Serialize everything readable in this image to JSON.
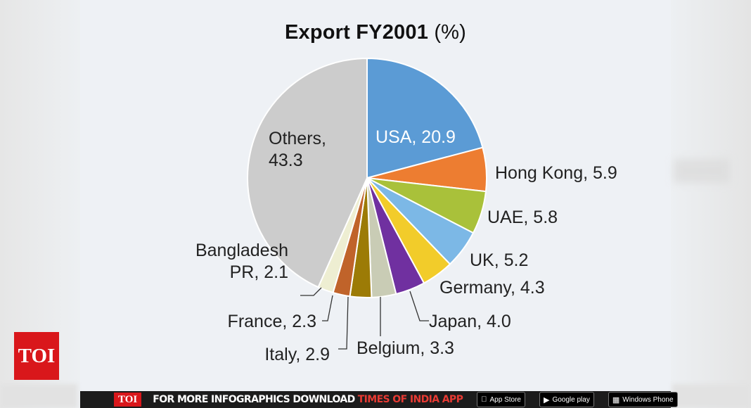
{
  "chart_data": {
    "type": "pie",
    "title_bold": "Export FY2001",
    "title_unit": "(%)",
    "slices": [
      {
        "label": "USA, 20.9",
        "name": "USA",
        "value": 20.9,
        "color": "#5b9bd5"
      },
      {
        "label": "Hong Kong, 5.9",
        "name": "Hong Kong",
        "value": 5.9,
        "color": "#ed7d31"
      },
      {
        "label": "UAE, 5.8",
        "name": "UAE",
        "value": 5.8,
        "color": "#a9c13a"
      },
      {
        "label": "UK, 5.2",
        "name": "UK",
        "value": 5.2,
        "color": "#7cb8e6"
      },
      {
        "label": "Germany, 4.3",
        "name": "Germany",
        "value": 4.3,
        "color": "#f2cc2a"
      },
      {
        "label": "Japan, 4.0",
        "name": "Japan",
        "value": 4.0,
        "color": "#7030a0"
      },
      {
        "label": "Belgium, 3.3",
        "name": "Belgium",
        "value": 3.3,
        "color": "#c9ccb5"
      },
      {
        "label": "Italy, 2.9",
        "name": "Italy",
        "value": 2.9,
        "color": "#9c7b06"
      },
      {
        "label": "France, 2.3",
        "name": "France",
        "value": 2.3,
        "color": "#c0632a"
      },
      {
        "label": "Bangladesh PR, 2.1",
        "name": "Bangladesh PR",
        "value": 2.1,
        "color": "#eeeed2"
      },
      {
        "label": "Others, 43.3",
        "name": "Others",
        "value": 43.3,
        "color": "#cccccc"
      }
    ],
    "label_lines": {
      "USA": [
        "USA, 20.9"
      ],
      "Hong Kong": [
        "Hong Kong, 5.9"
      ],
      "UAE": [
        "UAE, 5.8"
      ],
      "UK": [
        "UK, 5.2"
      ],
      "Germany": [
        "Germany, 4.3"
      ],
      "Japan": [
        "Japan, 4.0"
      ],
      "Belgium": [
        "Belgium, 3.3"
      ],
      "Italy": [
        "Italy, 2.9"
      ],
      "France": [
        "France, 2.3"
      ],
      "Bangladesh PR": [
        "Bangladesh",
        "PR, 2.1"
      ],
      "Others": [
        "Others,",
        "43.3"
      ]
    }
  },
  "branding": {
    "logo_text": "TOI",
    "footer_logo": "TOI",
    "footer_text": "FOR MORE  INFOGRAPHICS DOWNLOAD",
    "footer_app": "TIMES OF INDIA APP",
    "app_store": "App Store",
    "google_play": "Google play",
    "windows_phone": "Windows Phone"
  },
  "colors": {
    "footer_bg": "#1c1c1c",
    "brand_red": "#d9171b"
  }
}
